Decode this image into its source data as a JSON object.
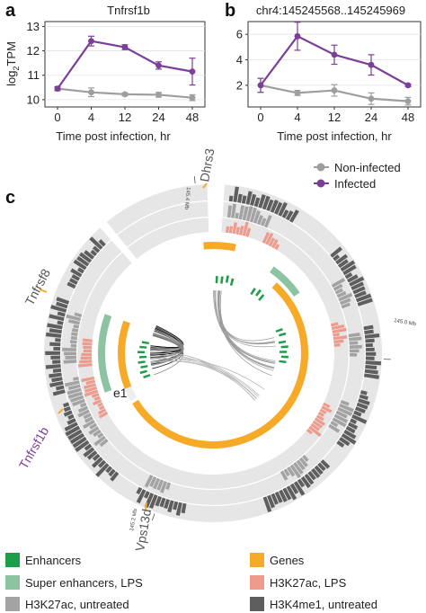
{
  "panels": {
    "a": "a",
    "b": "b",
    "c": "c"
  },
  "chart_data": [
    {
      "type": "line",
      "title": "Tnfrsf1b",
      "xlabel": "Time post infection, hr",
      "ylabel": "log2TPM",
      "ylabel_main": "log",
      "ylabel_sub": "2",
      "ylabel_rest": "TPM",
      "x": [
        "0",
        "4",
        "12",
        "24",
        "48"
      ],
      "ylim": [
        9.7,
        13.2
      ],
      "yticks": [
        "10",
        "11",
        "12",
        "13"
      ],
      "yticks_values": [
        10,
        11,
        12,
        13
      ],
      "series": [
        {
          "name": "Non-infected",
          "color": "#9e9e9e",
          "values": [
            10.45,
            10.3,
            10.22,
            10.2,
            10.08
          ],
          "err": [
            0.08,
            0.18,
            0.06,
            0.1,
            0.12
          ]
        },
        {
          "name": "Infected",
          "color": "#7b3f98",
          "values": [
            10.45,
            12.4,
            12.15,
            11.4,
            11.15
          ],
          "err": [
            0.08,
            0.2,
            0.1,
            0.15,
            0.55
          ]
        }
      ]
    },
    {
      "type": "line",
      "title": "chr4:145245568..145245969",
      "annotation": "e1",
      "xlabel": "Time post infection, hr",
      "x": [
        "0",
        "4",
        "12",
        "24",
        "48"
      ],
      "ylim": [
        0.3,
        7.0
      ],
      "yticks": [
        "2",
        "4",
        "6"
      ],
      "yticks_values": [
        2,
        4,
        6
      ],
      "series": [
        {
          "name": "Non-infected",
          "color": "#9e9e9e",
          "values": [
            2.0,
            1.4,
            1.6,
            0.95,
            0.75
          ],
          "err": [
            0.55,
            0.2,
            0.45,
            0.45,
            0.3
          ]
        },
        {
          "name": "Infected",
          "color": "#7b3f98",
          "values": [
            2.0,
            5.85,
            4.4,
            3.6,
            2.0
          ],
          "err": [
            0.55,
            1.1,
            0.75,
            0.8,
            0.1
          ]
        }
      ]
    }
  ],
  "line_legend": {
    "items": [
      {
        "label": "Non-infected",
        "color": "#9e9e9e"
      },
      {
        "label": "Infected",
        "color": "#7b3f98"
      }
    ]
  },
  "circos": {
    "genes": [
      {
        "label": "Dhrs3",
        "color": "#555555"
      },
      {
        "label": "Tnfrsf8",
        "color": "#555555"
      },
      {
        "label": "Tnfrsf1b",
        "color": "#7b3f98"
      },
      {
        "label": "Vps13d",
        "color": "#555555"
      }
    ],
    "mb_labels": [
      "145.4 Mb",
      "145.0 Mb",
      "145.2 Mb"
    ],
    "enhancer_label": "e1"
  },
  "track_legend": {
    "items": [
      {
        "label": "Enhancers",
        "color": "#1e9e4a"
      },
      {
        "label": "Genes",
        "color": "#f7a928"
      },
      {
        "label": "Super enhancers, LPS",
        "color": "#8cc4a2"
      },
      {
        "label": "H3K27ac, LPS",
        "color": "#ee9a8c"
      },
      {
        "label": "H3K27ac, untreated",
        "color": "#a3a3a3"
      },
      {
        "label": "H3K4me1, untreated",
        "color": "#5e5e5e"
      }
    ]
  }
}
